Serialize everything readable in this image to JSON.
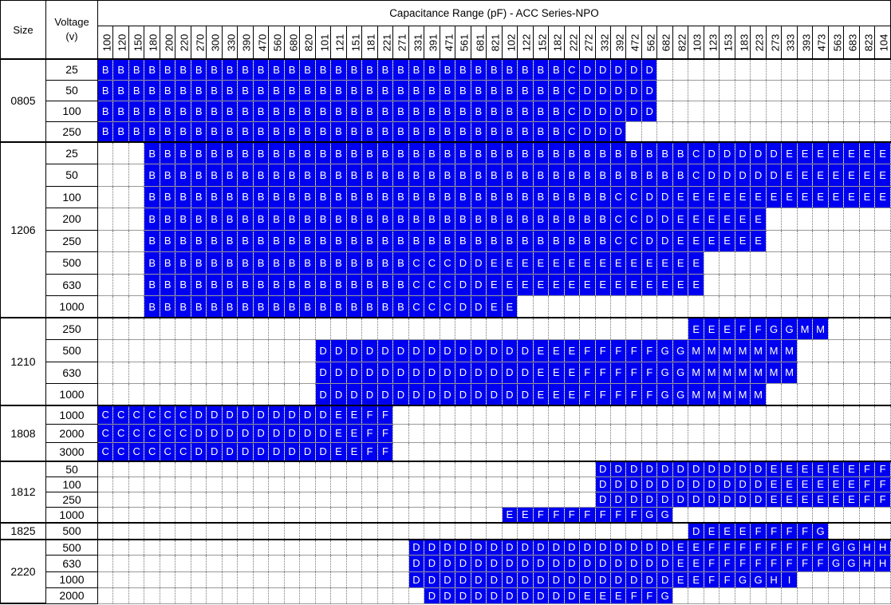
{
  "header": {
    "size_label": "Size",
    "voltage_label": "Voltage\n(v)",
    "title": "Capacitance Range (pF) - ACC Series-NPO"
  },
  "columns": [
    "100",
    "120",
    "150",
    "180",
    "200",
    "220",
    "270",
    "300",
    "330",
    "390",
    "470",
    "560",
    "680",
    "820",
    "101",
    "121",
    "151",
    "181",
    "221",
    "271",
    "331",
    "391",
    "471",
    "561",
    "681",
    "821",
    "102",
    "122",
    "152",
    "182",
    "222",
    "272",
    "332",
    "392",
    "472",
    "562",
    "682",
    "822",
    "103",
    "123",
    "153",
    "183",
    "223",
    "273",
    "333",
    "393",
    "473",
    "563",
    "683",
    "823",
    "104"
  ],
  "colors": {
    "filled_cell": "#0000f0",
    "filled_text": "#ffffff"
  },
  "groups": [
    {
      "size": "0805",
      "rows": [
        {
          "voltage": "25",
          "cells": [
            [
              "B",
              30
            ],
            [
              "C",
              1
            ],
            [
              "D",
              5
            ],
            [
              "",
              15
            ]
          ]
        },
        {
          "voltage": "50",
          "cells": [
            [
              "B",
              30
            ],
            [
              "C",
              1
            ],
            [
              "D",
              5
            ],
            [
              "",
              15
            ]
          ]
        },
        {
          "voltage": "100",
          "cells": [
            [
              "B",
              30
            ],
            [
              "C",
              1
            ],
            [
              "D",
              5
            ],
            [
              "",
              15
            ]
          ]
        },
        {
          "voltage": "250",
          "cells": [
            [
              "B",
              30
            ],
            [
              "C",
              1
            ],
            [
              "D",
              3
            ],
            [
              "",
              17
            ]
          ]
        }
      ]
    },
    {
      "size": "1206",
      "rows": [
        {
          "voltage": "25",
          "cells": [
            [
              "",
              3
            ],
            [
              "B",
              35
            ],
            [
              "C",
              1
            ],
            [
              "D",
              5
            ],
            [
              "E",
              7
            ]
          ]
        },
        {
          "voltage": "50",
          "cells": [
            [
              "",
              3
            ],
            [
              "B",
              35
            ],
            [
              "C",
              1
            ],
            [
              "D",
              5
            ],
            [
              "E",
              7
            ]
          ]
        },
        {
          "voltage": "100",
          "cells": [
            [
              "",
              3
            ],
            [
              "B",
              30
            ],
            [
              "C",
              2
            ],
            [
              "D",
              2
            ],
            [
              "E",
              14
            ]
          ]
        },
        {
          "voltage": "200",
          "cells": [
            [
              "",
              3
            ],
            [
              "B",
              30
            ],
            [
              "C",
              2
            ],
            [
              "D",
              2
            ],
            [
              "E",
              6
            ],
            [
              "",
              8
            ]
          ]
        },
        {
          "voltage": "250",
          "cells": [
            [
              "",
              3
            ],
            [
              "B",
              30
            ],
            [
              "C",
              2
            ],
            [
              "D",
              2
            ],
            [
              "E",
              6
            ],
            [
              "",
              8
            ]
          ]
        },
        {
          "voltage": "500",
          "cells": [
            [
              "",
              3
            ],
            [
              "B",
              17
            ],
            [
              "C",
              3
            ],
            [
              "D",
              2
            ],
            [
              "E",
              14
            ],
            [
              "",
              12
            ]
          ]
        },
        {
          "voltage": "630",
          "cells": [
            [
              "",
              3
            ],
            [
              "B",
              17
            ],
            [
              "C",
              3
            ],
            [
              "D",
              2
            ],
            [
              "E",
              14
            ],
            [
              "",
              12
            ]
          ]
        },
        {
          "voltage": "1000",
          "cells": [
            [
              "",
              3
            ],
            [
              "B",
              17
            ],
            [
              "C",
              3
            ],
            [
              "D",
              2
            ],
            [
              "E",
              2
            ],
            [
              "",
              24
            ]
          ]
        }
      ]
    },
    {
      "size": "1210",
      "rows": [
        {
          "voltage": "250",
          "cells": [
            [
              "",
              38
            ],
            [
              "E",
              3
            ],
            [
              "F",
              2
            ],
            [
              "G",
              2
            ],
            [
              "M",
              2
            ],
            [
              "",
              4
            ]
          ]
        },
        {
          "voltage": "500",
          "cells": [
            [
              "",
              14
            ],
            [
              "D",
              14
            ],
            [
              "E",
              3
            ],
            [
              "F",
              5
            ],
            [
              "G",
              2
            ],
            [
              "M",
              7
            ],
            [
              "",
              6
            ]
          ]
        },
        {
          "voltage": "630",
          "cells": [
            [
              "",
              14
            ],
            [
              "D",
              14
            ],
            [
              "E",
              3
            ],
            [
              "F",
              5
            ],
            [
              "G",
              2
            ],
            [
              "M",
              7
            ],
            [
              "",
              6
            ]
          ]
        },
        {
          "voltage": "1000",
          "cells": [
            [
              "",
              14
            ],
            [
              "D",
              14
            ],
            [
              "E",
              3
            ],
            [
              "F",
              5
            ],
            [
              "G",
              2
            ],
            [
              "M",
              5
            ],
            [
              "",
              8
            ]
          ]
        }
      ]
    },
    {
      "size": "1808",
      "rows": [
        {
          "voltage": "1000",
          "cells": [
            [
              "C",
              6
            ],
            [
              "D",
              9
            ],
            [
              "E",
              2
            ],
            [
              "F",
              2
            ],
            [
              "",
              32
            ]
          ]
        },
        {
          "voltage": "2000",
          "cells": [
            [
              "C",
              6
            ],
            [
              "D",
              9
            ],
            [
              "E",
              2
            ],
            [
              "F",
              2
            ],
            [
              "",
              32
            ]
          ]
        },
        {
          "voltage": "3000",
          "cells": [
            [
              "C",
              6
            ],
            [
              "D",
              9
            ],
            [
              "E",
              2
            ],
            [
              "F",
              2
            ],
            [
              "",
              32
            ]
          ]
        }
      ]
    },
    {
      "size": "1812",
      "rows": [
        {
          "voltage": "50",
          "cells": [
            [
              "",
              32
            ],
            [
              "D",
              11
            ],
            [
              "E",
              6
            ],
            [
              "F",
              2
            ]
          ]
        },
        {
          "voltage": "100",
          "cells": [
            [
              "",
              32
            ],
            [
              "D",
              11
            ],
            [
              "E",
              6
            ],
            [
              "F",
              2
            ]
          ]
        },
        {
          "voltage": "250",
          "cells": [
            [
              "",
              32
            ],
            [
              "D",
              11
            ],
            [
              "E",
              6
            ],
            [
              "F",
              2
            ]
          ]
        },
        {
          "voltage": "1000",
          "cells": [
            [
              "",
              26
            ],
            [
              "E",
              2
            ],
            [
              "F",
              7
            ],
            [
              "G",
              2
            ],
            [
              "",
              14
            ]
          ]
        }
      ]
    },
    {
      "size": "1825",
      "rows": [
        {
          "voltage": "500",
          "cells": [
            [
              "",
              38
            ],
            [
              "D",
              1
            ],
            [
              "E",
              3
            ],
            [
              "F",
              4
            ],
            [
              "G",
              1
            ],
            [
              "",
              4
            ]
          ]
        }
      ]
    },
    {
      "size": "2220",
      "rows": [
        {
          "voltage": "500",
          "cells": [
            [
              "",
              20
            ],
            [
              "D",
              17
            ],
            [
              "E",
              2
            ],
            [
              "F",
              8
            ],
            [
              "G",
              2
            ],
            [
              "H",
              2
            ]
          ]
        },
        {
          "voltage": "630",
          "cells": [
            [
              "",
              20
            ],
            [
              "D",
              17
            ],
            [
              "E",
              2
            ],
            [
              "F",
              8
            ],
            [
              "G",
              2
            ],
            [
              "H",
              2
            ]
          ]
        },
        {
          "voltage": "1000",
          "cells": [
            [
              "",
              20
            ],
            [
              "D",
              17
            ],
            [
              "E",
              2
            ],
            [
              "F",
              2
            ],
            [
              "G",
              2
            ],
            [
              "H",
              1
            ],
            [
              "I",
              1
            ],
            [
              "",
              6
            ]
          ]
        },
        {
          "voltage": "2000",
          "cells": [
            [
              "",
              21
            ],
            [
              "D",
              10
            ],
            [
              "E",
              3
            ],
            [
              "F",
              2
            ],
            [
              "G",
              1
            ],
            [
              "",
              14
            ]
          ]
        }
      ]
    }
  ]
}
